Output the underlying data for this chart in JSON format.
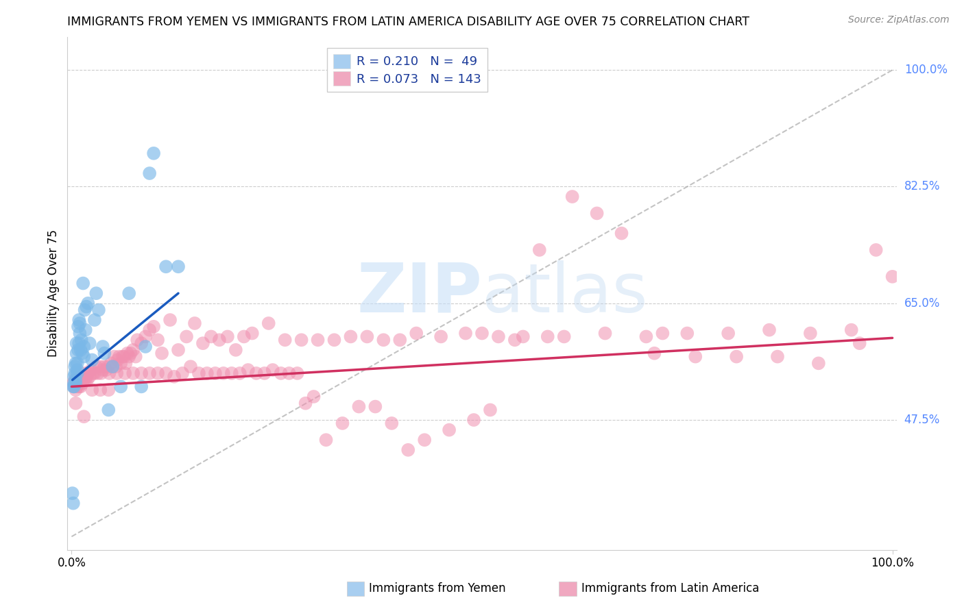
{
  "title": "IMMIGRANTS FROM YEMEN VS IMMIGRANTS FROM LATIN AMERICA DISABILITY AGE OVER 75 CORRELATION CHART",
  "source": "Source: ZipAtlas.com",
  "ylabel": "Disability Age Over 75",
  "ytick_labels": [
    "47.5%",
    "65.0%",
    "82.5%",
    "100.0%"
  ],
  "ytick_values": [
    0.475,
    0.65,
    0.825,
    1.0
  ],
  "ylim": [
    0.28,
    1.05
  ],
  "xlim": [
    -0.005,
    1.005
  ],
  "watermark_zip": "ZIP",
  "watermark_atlas": "atlas",
  "yemen_color": "#7ab8e8",
  "latin_color": "#f090b0",
  "yemen_line_color": "#1a5bbf",
  "latin_line_color": "#d03060",
  "ref_line_color": "#aaaaaa",
  "yemen_scatter": {
    "x": [
      0.001,
      0.002,
      0.002,
      0.003,
      0.003,
      0.003,
      0.004,
      0.004,
      0.005,
      0.005,
      0.005,
      0.006,
      0.006,
      0.007,
      0.007,
      0.007,
      0.008,
      0.008,
      0.009,
      0.009,
      0.01,
      0.01,
      0.011,
      0.012,
      0.013,
      0.014,
      0.015,
      0.015,
      0.016,
      0.017,
      0.018,
      0.02,
      0.022,
      0.025,
      0.028,
      0.03,
      0.033,
      0.038,
      0.04,
      0.045,
      0.05,
      0.06,
      0.07,
      0.085,
      0.09,
      0.095,
      0.1,
      0.115,
      0.13
    ],
    "y": [
      0.365,
      0.525,
      0.35,
      0.54,
      0.53,
      0.525,
      0.555,
      0.545,
      0.56,
      0.535,
      0.53,
      0.59,
      0.575,
      0.56,
      0.55,
      0.545,
      0.615,
      0.58,
      0.625,
      0.59,
      0.62,
      0.605,
      0.58,
      0.595,
      0.575,
      0.68,
      0.57,
      0.585,
      0.64,
      0.61,
      0.645,
      0.65,
      0.59,
      0.565,
      0.625,
      0.665,
      0.64,
      0.585,
      0.575,
      0.49,
      0.555,
      0.525,
      0.665,
      0.525,
      0.585,
      0.845,
      0.875,
      0.705,
      0.705
    ]
  },
  "latin_scatter": {
    "x": [
      0.002,
      0.003,
      0.004,
      0.005,
      0.006,
      0.007,
      0.008,
      0.009,
      0.01,
      0.011,
      0.012,
      0.013,
      0.014,
      0.015,
      0.016,
      0.017,
      0.018,
      0.019,
      0.02,
      0.022,
      0.024,
      0.026,
      0.028,
      0.03,
      0.032,
      0.034,
      0.036,
      0.038,
      0.04,
      0.042,
      0.044,
      0.046,
      0.048,
      0.05,
      0.052,
      0.054,
      0.056,
      0.058,
      0.06,
      0.062,
      0.064,
      0.066,
      0.068,
      0.07,
      0.072,
      0.075,
      0.078,
      0.08,
      0.085,
      0.09,
      0.095,
      0.1,
      0.105,
      0.11,
      0.12,
      0.13,
      0.14,
      0.15,
      0.16,
      0.17,
      0.18,
      0.19,
      0.2,
      0.21,
      0.22,
      0.24,
      0.26,
      0.28,
      0.3,
      0.32,
      0.34,
      0.36,
      0.38,
      0.4,
      0.42,
      0.45,
      0.48,
      0.5,
      0.52,
      0.55,
      0.58,
      0.6,
      0.65,
      0.7,
      0.72,
      0.75,
      0.8,
      0.85,
      0.9,
      0.95,
      1.0,
      0.005,
      0.015,
      0.025,
      0.035,
      0.045,
      0.055,
      0.065,
      0.075,
      0.085,
      0.095,
      0.105,
      0.115,
      0.125,
      0.135,
      0.145,
      0.155,
      0.165,
      0.175,
      0.185,
      0.195,
      0.205,
      0.215,
      0.225,
      0.235,
      0.245,
      0.255,
      0.265,
      0.275,
      0.285,
      0.295,
      0.31,
      0.33,
      0.35,
      0.37,
      0.39,
      0.41,
      0.43,
      0.46,
      0.49,
      0.51,
      0.54,
      0.57,
      0.61,
      0.64,
      0.67,
      0.71,
      0.76,
      0.81,
      0.86,
      0.91,
      0.96,
      0.98
    ],
    "y": [
      0.53,
      0.525,
      0.535,
      0.52,
      0.525,
      0.535,
      0.54,
      0.525,
      0.53,
      0.525,
      0.535,
      0.53,
      0.54,
      0.535,
      0.545,
      0.535,
      0.54,
      0.535,
      0.545,
      0.54,
      0.55,
      0.545,
      0.545,
      0.555,
      0.545,
      0.555,
      0.545,
      0.55,
      0.555,
      0.55,
      0.555,
      0.545,
      0.56,
      0.555,
      0.57,
      0.555,
      0.565,
      0.57,
      0.56,
      0.57,
      0.57,
      0.56,
      0.575,
      0.57,
      0.575,
      0.58,
      0.57,
      0.595,
      0.59,
      0.6,
      0.61,
      0.615,
      0.595,
      0.575,
      0.625,
      0.58,
      0.6,
      0.62,
      0.59,
      0.6,
      0.595,
      0.6,
      0.58,
      0.6,
      0.605,
      0.62,
      0.595,
      0.595,
      0.595,
      0.595,
      0.6,
      0.6,
      0.595,
      0.595,
      0.605,
      0.6,
      0.605,
      0.605,
      0.6,
      0.6,
      0.6,
      0.6,
      0.605,
      0.6,
      0.605,
      0.605,
      0.605,
      0.61,
      0.605,
      0.61,
      0.69,
      0.5,
      0.48,
      0.52,
      0.52,
      0.52,
      0.545,
      0.545,
      0.545,
      0.545,
      0.545,
      0.545,
      0.545,
      0.54,
      0.545,
      0.555,
      0.545,
      0.545,
      0.545,
      0.545,
      0.545,
      0.545,
      0.55,
      0.545,
      0.545,
      0.55,
      0.545,
      0.545,
      0.545,
      0.5,
      0.51,
      0.445,
      0.47,
      0.495,
      0.495,
      0.47,
      0.43,
      0.445,
      0.46,
      0.475,
      0.49,
      0.595,
      0.73,
      0.81,
      0.785,
      0.755,
      0.575,
      0.57,
      0.57,
      0.57,
      0.56,
      0.59,
      0.73
    ]
  },
  "yemen_line": {
    "x0": 0.001,
    "x1": 0.13,
    "y0": 0.535,
    "y1": 0.665
  },
  "latin_line": {
    "x0": 0.0,
    "x1": 1.0,
    "y0": 0.525,
    "y1": 0.598
  },
  "ref_line": {
    "x0": 0.0,
    "x1": 1.0,
    "y0": 0.3,
    "y1": 1.0
  },
  "legend_items": [
    {
      "label": "R = 0.210   N =  49",
      "color": "#a8cef0"
    },
    {
      "label": "R = 0.073   N = 143",
      "color": "#f0a8c0"
    }
  ],
  "bottom_labels": [
    {
      "text": "Immigrants from Yemen",
      "color": "#a8cef0"
    },
    {
      "text": "Immigrants from Latin America",
      "color": "#f0a8c0"
    }
  ]
}
